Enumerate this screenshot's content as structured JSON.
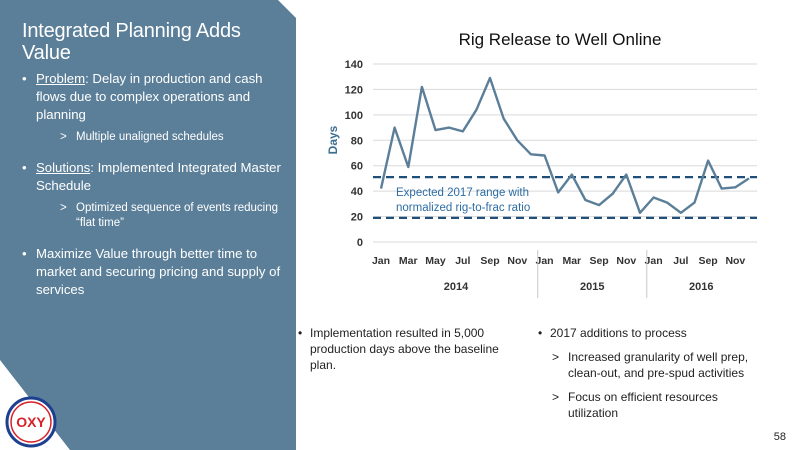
{
  "slide": {
    "title": "Integrated Planning Adds Value",
    "page_number": "58"
  },
  "left_bullets": {
    "problem_label": "Problem",
    "problem_text": ": Delay in production and cash flows due to complex operations and planning",
    "problem_sub": "Multiple unaligned schedules",
    "solutions_label": "Solutions",
    "solutions_text": ": Implemented Integrated Master Schedule",
    "solutions_sub": "Optimized sequence of events reducing “flat time”",
    "value_text": "Maximize Value through better time to market and securing pricing and supply of services"
  },
  "bottom": {
    "col1_bullet": "Implementation resulted in 5,000 production days above the baseline plan.",
    "col2_bullet": "2017 additions to process",
    "col2_sub1": "Increased granularity of well prep, clean-out, and pre-spud activities",
    "col2_sub2": "Focus on efficient resources utilization"
  },
  "logo": {
    "text": "OXY",
    "colors": {
      "red": "#d6202a",
      "blue": "#1d3f8f"
    }
  },
  "colors": {
    "panel": "#5b7f99",
    "line": "#5b7f99",
    "dashed": "#1f4e79",
    "annotation": "#2e6da4"
  },
  "chart_data": {
    "type": "line",
    "title": "Rig Release to Well Online",
    "ylabel": "Days",
    "xlabel": "",
    "ylim": [
      0,
      140
    ],
    "yticks": [
      0,
      20,
      40,
      60,
      80,
      100,
      120,
      140
    ],
    "grid": "horizontal",
    "x_tick_labels": [
      "Jan",
      "Mar",
      "May",
      "Jul",
      "Sep",
      "Nov",
      "Jan",
      "Mar",
      "Sep",
      "Nov",
      "Jan",
      "Jul",
      "Sep",
      "Nov"
    ],
    "x_tick_indices": [
      0,
      2,
      4,
      6,
      8,
      10,
      12,
      14,
      16,
      18,
      20,
      22,
      24,
      26
    ],
    "year_groups": [
      {
        "label": "2014",
        "start": 0,
        "end": 11
      },
      {
        "label": "2015",
        "start": 12,
        "end": 19
      },
      {
        "label": "2016",
        "start": 20,
        "end": 27
      }
    ],
    "series": [
      {
        "values": [
          42,
          90,
          59,
          122,
          88,
          90,
          87,
          104,
          129,
          97,
          80,
          69,
          68,
          39,
          53,
          33,
          29,
          38,
          53,
          23,
          35,
          31,
          23,
          31,
          64,
          42,
          43,
          50
        ]
      }
    ],
    "reference_lines": [
      51,
      19
    ],
    "annotation": {
      "lines": [
        "Expected 2017 range with",
        "normalized rig-to-frac ratio"
      ]
    }
  }
}
